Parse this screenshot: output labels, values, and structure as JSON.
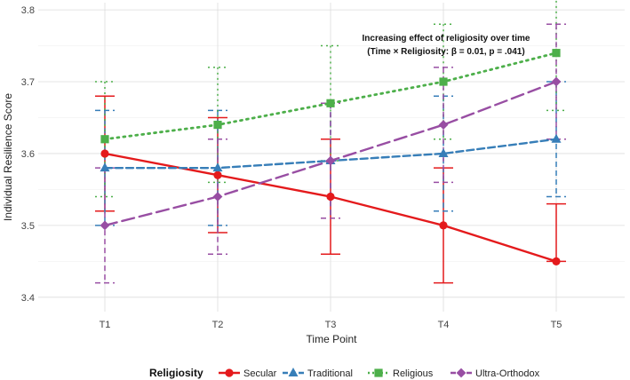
{
  "chart_data": {
    "type": "line",
    "title": "",
    "xlabel": "Time Point",
    "ylabel": "Individual Resilience Score",
    "categories": [
      "T1",
      "T2",
      "T3",
      "T4",
      "T5"
    ],
    "ylim": [
      3.38,
      3.81
    ],
    "yticks": [
      "3.4",
      "3.5",
      "3.6",
      "3.7",
      "3.8"
    ],
    "grid": true,
    "legend": {
      "title": "Religiosity",
      "position": "bottom"
    },
    "annotation": {
      "line1": "Increasing effect of religiosity over time",
      "line2": "(Time × Religiosity: β = 0.01, p = .041)"
    },
    "series": [
      {
        "name": "Secular",
        "color": "#e41a1c",
        "marker": "circle",
        "linestyle": "solid",
        "values": [
          3.6,
          3.57,
          3.54,
          3.5,
          3.45
        ],
        "lower": [
          3.52,
          3.49,
          3.46,
          3.42,
          3.45
        ],
        "upper": [
          3.68,
          3.65,
          3.62,
          3.58,
          3.53
        ]
      },
      {
        "name": "Traditional",
        "color": "#377eb8",
        "marker": "triangle",
        "linestyle": "dashed",
        "values": [
          3.58,
          3.58,
          3.59,
          3.6,
          3.62
        ],
        "lower": [
          3.5,
          3.5,
          3.51,
          3.52,
          3.54
        ],
        "upper": [
          3.66,
          3.66,
          3.67,
          3.68,
          3.7
        ]
      },
      {
        "name": "Religious",
        "color": "#4daf4a",
        "marker": "square",
        "linestyle": "dotted",
        "values": [
          3.62,
          3.64,
          3.67,
          3.7,
          3.74
        ],
        "lower": [
          3.54,
          3.56,
          3.59,
          3.62,
          3.66
        ],
        "upper": [
          3.7,
          3.72,
          3.75,
          3.78,
          3.82
        ]
      },
      {
        "name": "Ultra-Orthodox",
        "color": "#984ea3",
        "marker": "diamond",
        "linestyle": "longdash",
        "values": [
          3.5,
          3.54,
          3.59,
          3.64,
          3.7
        ],
        "lower": [
          3.42,
          3.46,
          3.51,
          3.56,
          3.62
        ],
        "upper": [
          3.58,
          3.62,
          3.67,
          3.72,
          3.78
        ]
      }
    ]
  }
}
